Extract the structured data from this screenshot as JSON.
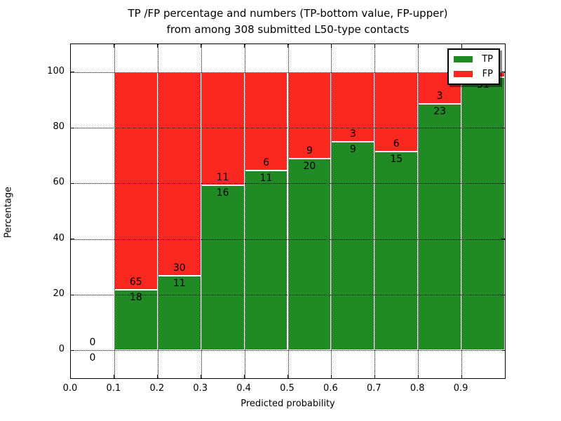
{
  "chart_data": {
    "type": "bar",
    "stacked": true,
    "title_lines": [
      "TP /FP percentage and numbers (TP-bottom value, FP-upper)",
      "from among 308 submitted L50-type contacts"
    ],
    "xlabel": "Predicted probability",
    "ylabel": "Percentage",
    "xlim": [
      0.0,
      1.0
    ],
    "ylim": [
      -10,
      110
    ],
    "grid": "dotted-black, drawn over bars",
    "legend_position": "upper right",
    "colors": {
      "tp": "#208a24",
      "fp": "#fa281e",
      "bar_edge": "#ffffff",
      "grid": "#000000",
      "text": "#000000",
      "background": "#ffffff"
    },
    "legend": [
      {
        "label": "TP",
        "series": "tp"
      },
      {
        "label": "FP",
        "series": "fp"
      }
    ],
    "x_ticks": [
      {
        "value": 0.0,
        "label": "0.0"
      },
      {
        "value": 0.1,
        "label": "0.1"
      },
      {
        "value": 0.2,
        "label": "0.2"
      },
      {
        "value": 0.3,
        "label": "0.3"
      },
      {
        "value": 0.4,
        "label": "0.4"
      },
      {
        "value": 0.5,
        "label": "0.5"
      },
      {
        "value": 0.6,
        "label": "0.6"
      },
      {
        "value": 0.7,
        "label": "0.7"
      },
      {
        "value": 0.8,
        "label": "0.8"
      },
      {
        "value": 0.9,
        "label": "0.9"
      }
    ],
    "y_ticks": [
      {
        "value": 0,
        "label": "0"
      },
      {
        "value": 20,
        "label": "20"
      },
      {
        "value": 40,
        "label": "40"
      },
      {
        "value": 60,
        "label": "60"
      },
      {
        "value": 80,
        "label": "80"
      },
      {
        "value": 100,
        "label": "100"
      }
    ],
    "bins": [
      {
        "range": [
          0.0,
          0.1
        ],
        "tp": 0,
        "fp": 0,
        "note": "no bar, both labels 0 shown at baseline"
      },
      {
        "range": [
          0.1,
          0.2
        ],
        "tp": 18,
        "fp": 65
      },
      {
        "range": [
          0.2,
          0.3
        ],
        "tp": 11,
        "fp": 30
      },
      {
        "range": [
          0.3,
          0.4
        ],
        "tp": 16,
        "fp": 11
      },
      {
        "range": [
          0.4,
          0.5
        ],
        "tp": 11,
        "fp": 6
      },
      {
        "range": [
          0.5,
          0.6
        ],
        "tp": 20,
        "fp": 9
      },
      {
        "range": [
          0.6,
          0.7
        ],
        "tp": 9,
        "fp": 3
      },
      {
        "range": [
          0.7,
          0.8
        ],
        "tp": 15,
        "fp": 6
      },
      {
        "range": [
          0.8,
          0.9
        ],
        "tp": 23,
        "fp": 3
      },
      {
        "range": [
          0.9,
          1.0
        ],
        "tp": 51,
        "fp": 1,
        "fp_label_hidden_by_legend": true
      }
    ]
  }
}
